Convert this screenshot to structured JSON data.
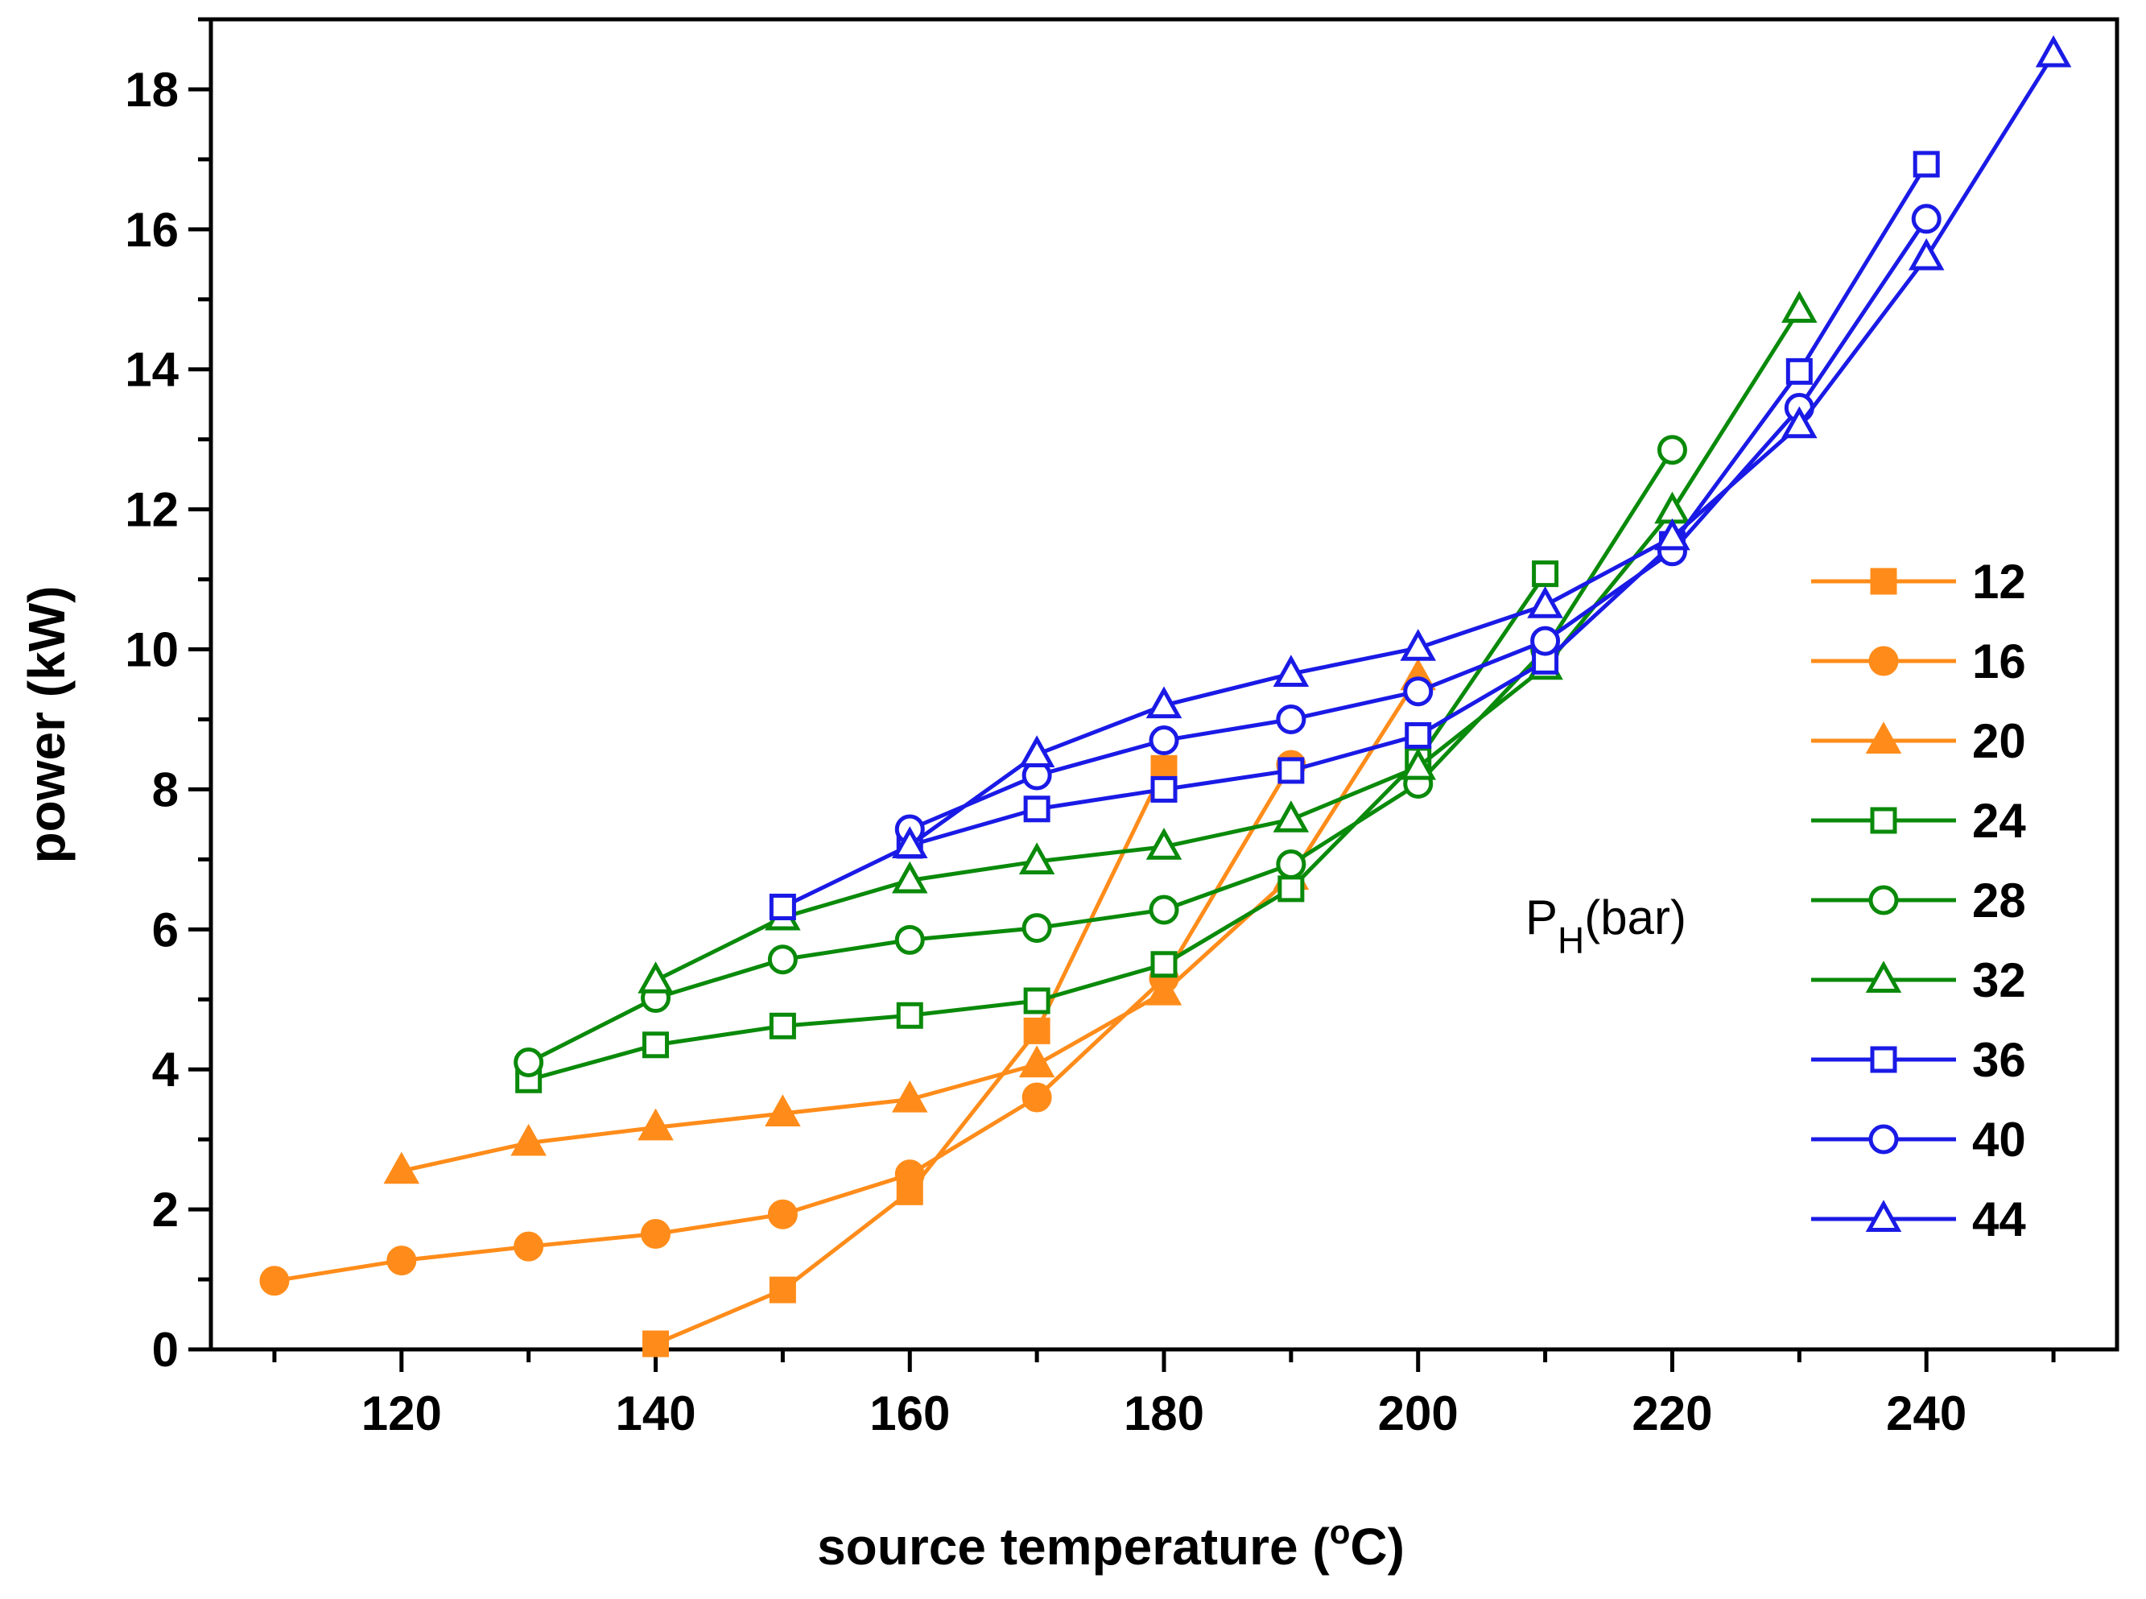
{
  "chart_data": {
    "type": "line",
    "title": "",
    "xlabel": "source temperature (",
    "xlabel_unit_sup": "o",
    "xlabel_unit": "C)",
    "ylabel": "power (kW)",
    "xlim": [
      105,
      255
    ],
    "ylim": [
      0,
      19
    ],
    "xticks": [
      120,
      140,
      160,
      180,
      200,
      220,
      240
    ],
    "yticks": [
      0,
      2,
      4,
      6,
      8,
      10,
      12,
      14,
      16,
      18
    ],
    "x_minor_step": 10,
    "y_minor_step": 1,
    "grid": false,
    "legend_position": "right",
    "annotation": {
      "main": "P",
      "sub": "H",
      "rest": "(bar)"
    },
    "series": [
      {
        "name": "12",
        "color": "#FF8C1A",
        "marker": "square",
        "filled": true,
        "x": [
          140,
          150,
          160,
          170,
          180
        ],
        "y": [
          0.08,
          0.85,
          2.25,
          4.55,
          8.3
        ]
      },
      {
        "name": "16",
        "color": "#FF8C1A",
        "marker": "circle",
        "filled": true,
        "x": [
          110,
          120,
          130,
          140,
          150,
          160,
          170,
          180,
          190
        ],
        "y": [
          0.98,
          1.27,
          1.47,
          1.65,
          1.93,
          2.5,
          3.6,
          5.3,
          8.35
        ]
      },
      {
        "name": "20",
        "color": "#FF8C1A",
        "marker": "triangle",
        "filled": true,
        "x": [
          120,
          130,
          140,
          150,
          160,
          170,
          180,
          190,
          200
        ],
        "y": [
          2.55,
          2.95,
          3.17,
          3.37,
          3.57,
          4.07,
          5.1,
          6.75,
          9.6
        ]
      },
      {
        "name": "24",
        "color": "#0A8A0A",
        "marker": "square",
        "filled": false,
        "x": [
          130,
          140,
          150,
          160,
          170,
          180,
          190,
          200,
          210
        ],
        "y": [
          3.85,
          4.35,
          4.62,
          4.77,
          4.98,
          5.5,
          6.58,
          8.42,
          11.08
        ]
      },
      {
        "name": "28",
        "color": "#0A8A0A",
        "marker": "circle",
        "filled": false,
        "x": [
          130,
          140,
          150,
          160,
          170,
          180,
          190,
          200,
          210,
          220
        ],
        "y": [
          4.1,
          5.02,
          5.57,
          5.85,
          6.02,
          6.28,
          6.93,
          8.08,
          10.0,
          12.85
        ]
      },
      {
        "name": "32",
        "color": "#0A8A0A",
        "marker": "triangle",
        "filled": false,
        "x": [
          140,
          150,
          160,
          170,
          180,
          190,
          200,
          210,
          220,
          230
        ],
        "y": [
          5.27,
          6.17,
          6.7,
          6.97,
          7.18,
          7.57,
          8.32,
          9.75,
          11.98,
          14.85
        ]
      },
      {
        "name": "36",
        "color": "#1A1AE6",
        "marker": "square",
        "filled": false,
        "x": [
          150,
          160,
          170,
          180,
          190,
          200,
          210,
          220,
          230,
          240
        ],
        "y": [
          6.32,
          7.2,
          7.72,
          8.0,
          8.27,
          8.77,
          9.83,
          11.5,
          13.97,
          16.93
        ]
      },
      {
        "name": "40",
        "color": "#1A1AE6",
        "marker": "circle",
        "filled": false,
        "x": [
          160,
          170,
          180,
          190,
          200,
          210,
          220,
          230,
          240
        ],
        "y": [
          7.43,
          8.2,
          8.7,
          9.0,
          9.4,
          10.12,
          11.4,
          13.45,
          16.15
        ]
      },
      {
        "name": "44",
        "color": "#1A1AE6",
        "marker": "triangle",
        "filled": false,
        "x": [
          160,
          170,
          180,
          190,
          200,
          210,
          220,
          230,
          240,
          250
        ],
        "y": [
          7.2,
          8.5,
          9.2,
          9.65,
          10.02,
          10.63,
          11.6,
          13.2,
          15.6,
          18.5
        ]
      }
    ]
  }
}
